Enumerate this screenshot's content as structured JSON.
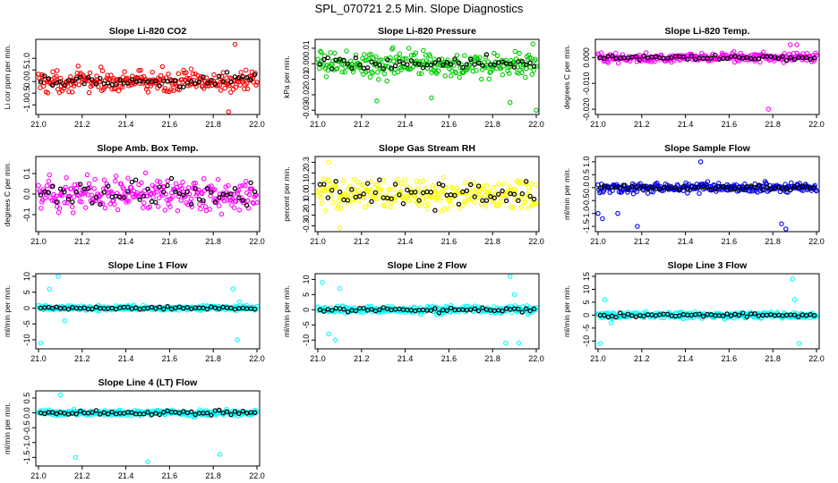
{
  "figure_title": "SPL_070721  2.5 Min. Slope Diagnostics",
  "chart_data": [
    {
      "type": "scatter",
      "title": "Slope Li-820 CO2",
      "ylabel": "Li cor ppm per min.",
      "color": "#ff0000",
      "xlim": [
        21.0,
        22.0
      ],
      "ylim": [
        -1.3,
        1.7
      ],
      "xticks": [
        "21.0",
        "21.2",
        "21.4",
        "21.6",
        "21.8",
        "22.0"
      ],
      "yticks": [
        {
          "v": 1.0,
          "t": "1.0"
        },
        {
          "v": 0.5,
          "t": "0.5"
        },
        {
          "v": 0.0,
          "t": "0.0"
        },
        {
          "v": -0.5,
          "t": "-0.5"
        },
        {
          "v": -1.0,
          "t": "-1.0"
        }
      ],
      "series": [
        {
          "name": "slope points",
          "spread": 0.32,
          "center": 0.0,
          "outliers": [
            [
              21.9,
              1.6
            ],
            [
              21.87,
              -1.3
            ]
          ]
        },
        {
          "name": "black points",
          "spread": 0.2,
          "center": 0.0
        }
      ]
    },
    {
      "type": "scatter",
      "title": "Slope Li-820 Pressure",
      "ylabel": "kPa per min.",
      "color": "#00cc00",
      "xlim": [
        21.0,
        22.0
      ],
      "ylim": [
        -0.031,
        0.014
      ],
      "xticks": [
        "21.0",
        "21.2",
        "21.4",
        "21.6",
        "21.8",
        "22.0"
      ],
      "yticks": [
        {
          "v": 0.01,
          "t": "0.01"
        },
        {
          "v": 0.0,
          "t": "0.00"
        },
        {
          "v": -0.01,
          "t": "-0.01"
        },
        {
          "v": -0.02,
          "t": "-0.02"
        },
        {
          "v": -0.03,
          "t": "-0.03"
        }
      ],
      "series": [
        {
          "name": "slope points",
          "spread": 0.006,
          "center": 0.0,
          "outliers": [
            [
              22.0,
              -0.03
            ],
            [
              21.27,
              -0.024
            ],
            [
              21.88,
              -0.025
            ],
            [
              21.52,
              -0.022
            ]
          ]
        },
        {
          "name": "black points",
          "spread": 0.003,
          "center": 0.0
        }
      ]
    },
    {
      "type": "scatter",
      "title": "Slope Li-820 Temp.",
      "ylabel": "degrees C per min.",
      "color": "#ff00ff",
      "xlim": [
        21.0,
        22.0
      ],
      "ylim": [
        -0.021,
        0.006
      ],
      "xticks": [
        "21.0",
        "21.2",
        "21.4",
        "21.6",
        "21.8",
        "22.0"
      ],
      "yticks": [
        {
          "v": 0.0,
          "t": "0.000"
        },
        {
          "v": -0.01,
          "t": "-0.010"
        },
        {
          "v": -0.02,
          "t": "-0.020"
        }
      ],
      "series": [
        {
          "name": "slope points",
          "spread": 0.0012,
          "center": 0.0,
          "outliers": [
            [
              21.78,
              -0.02
            ],
            [
              21.88,
              0.005
            ],
            [
              21.91,
              0.005
            ]
          ]
        },
        {
          "name": "black points",
          "spread": 0.0006,
          "center": 0.0
        }
      ]
    },
    {
      "type": "scatter",
      "title": "Slope Amb. Box Temp.",
      "ylabel": "degrees C per min.",
      "color": "#ff00ff",
      "xlim": [
        21.0,
        22.0
      ],
      "ylim": [
        -0.17,
        0.17
      ],
      "xticks": [
        "21.0",
        "21.2",
        "21.4",
        "21.6",
        "21.8",
        "22.0"
      ],
      "yticks": [
        {
          "v": 0.1,
          "t": "0.1"
        },
        {
          "v": 0.0,
          "t": "0.0"
        },
        {
          "v": -0.1,
          "t": "-0.1"
        }
      ],
      "series": [
        {
          "name": "slope points",
          "spread": 0.06,
          "center": 0.0,
          "outliers": []
        },
        {
          "name": "black points",
          "spread": 0.05,
          "center": 0.0
        }
      ]
    },
    {
      "type": "scatter",
      "title": "Slope Gas Stream RH",
      "ylabel": "percent per min.",
      "color": "#ffff00",
      "xlim": [
        21.0,
        22.0
      ],
      "ylim": [
        -0.33,
        0.33
      ],
      "xticks": [
        "21.0",
        "21.2",
        "21.4",
        "21.6",
        "21.8",
        "22.0"
      ],
      "yticks": [
        {
          "v": 0.3,
          "t": "0.3"
        },
        {
          "v": 0.2,
          "t": "0.2"
        },
        {
          "v": 0.1,
          "t": "0.1"
        },
        {
          "v": 0.0,
          "t": "0.0"
        },
        {
          "v": -0.1,
          "t": "-0.1"
        },
        {
          "v": -0.2,
          "t": "-0.2"
        },
        {
          "v": -0.3,
          "t": "-0.3"
        }
      ],
      "series": [
        {
          "name": "slope points",
          "spread": 0.1,
          "center": 0.0,
          "outliers": [
            [
              21.05,
              0.3
            ],
            [
              21.1,
              -0.32
            ]
          ]
        },
        {
          "name": "black points",
          "spread": 0.08,
          "center": 0.0
        }
      ]
    },
    {
      "type": "scatter",
      "title": "Slope Sample Flow",
      "ylabel": "ml/min per min.",
      "color": "#0000ee",
      "xlim": [
        21.0,
        22.0
      ],
      "ylim": [
        -1.6,
        1.1
      ],
      "xticks": [
        "21.0",
        "21.2",
        "21.4",
        "21.6",
        "21.8",
        "22.0"
      ],
      "yticks": [
        {
          "v": 1.0,
          "t": "1.0"
        },
        {
          "v": 0.5,
          "t": "0.5"
        },
        {
          "v": 0.0,
          "t": "0.0"
        },
        {
          "v": -0.5,
          "t": "-0.5"
        },
        {
          "v": -1.0,
          "t": "-1.0"
        },
        {
          "v": -1.5,
          "t": "-1.5"
        }
      ],
      "series": [
        {
          "name": "slope points",
          "spread": 0.12,
          "center": 0.0,
          "outliers": [
            [
              21.0,
              -1.0
            ],
            [
              21.02,
              -1.2
            ],
            [
              21.09,
              -1.0
            ],
            [
              21.18,
              -1.5
            ],
            [
              21.47,
              1.0
            ],
            [
              21.84,
              -1.4
            ],
            [
              21.86,
              -1.6
            ]
          ]
        },
        {
          "name": "black points",
          "spread": 0.08,
          "center": 0.0
        }
      ]
    },
    {
      "type": "scatter",
      "title": "Slope Line 1 Flow",
      "ylabel": "ml/min per min.",
      "color": "#00ffff",
      "xlim": [
        21.0,
        22.0
      ],
      "ylim": [
        -12,
        10
      ],
      "xticks": [
        "21.0",
        "21.2",
        "21.4",
        "21.6",
        "21.8",
        "22.0"
      ],
      "yticks": [
        {
          "v": 10,
          "t": "10"
        },
        {
          "v": 5,
          "t": "5"
        },
        {
          "v": 0,
          "t": "0"
        },
        {
          "v": -5,
          "t": "-5"
        },
        {
          "v": -10,
          "t": "-10"
        }
      ],
      "series": [
        {
          "name": "slope points",
          "spread": 0.5,
          "center": 0.0,
          "outliers": [
            [
              21.01,
              -11
            ],
            [
              21.05,
              6
            ],
            [
              21.09,
              10
            ],
            [
              21.12,
              -4
            ],
            [
              21.89,
              6
            ],
            [
              21.91,
              -10
            ],
            [
              21.92,
              2
            ]
          ]
        },
        {
          "name": "black points",
          "spread": 0.3,
          "center": 0.0
        }
      ]
    },
    {
      "type": "scatter",
      "title": "Slope Line 2 Flow",
      "ylabel": "ml/min per min.",
      "color": "#00ffff",
      "xlim": [
        21.0,
        22.0
      ],
      "ylim": [
        -12,
        11
      ],
      "xticks": [
        "21.0",
        "21.2",
        "21.4",
        "21.6",
        "21.8",
        "22.0"
      ],
      "yticks": [
        {
          "v": 10,
          "t": "10"
        },
        {
          "v": 5,
          "t": "5"
        },
        {
          "v": 0,
          "t": "0"
        },
        {
          "v": -5,
          "t": "-5"
        },
        {
          "v": -10,
          "t": "-10"
        }
      ],
      "series": [
        {
          "name": "slope points",
          "spread": 0.8,
          "center": 0.0,
          "outliers": [
            [
              21.02,
              9
            ],
            [
              21.05,
              -8
            ],
            [
              21.08,
              -10
            ],
            [
              21.1,
              7
            ],
            [
              21.86,
              -11
            ],
            [
              21.88,
              11
            ],
            [
              21.9,
              5
            ],
            [
              21.92,
              -11
            ]
          ]
        },
        {
          "name": "black points",
          "spread": 0.5,
          "center": 0.0
        }
      ]
    },
    {
      "type": "scatter",
      "title": "Slope Line 3 Flow",
      "ylabel": "ml/min per min.",
      "color": "#00ffff",
      "xlim": [
        21.0,
        22.0
      ],
      "ylim": [
        -12,
        15
      ],
      "xticks": [
        "21.0",
        "21.2",
        "21.4",
        "21.6",
        "21.8",
        "22.0"
      ],
      "yticks": [
        {
          "v": 15,
          "t": "15"
        },
        {
          "v": 10,
          "t": "10"
        },
        {
          "v": 5,
          "t": "5"
        },
        {
          "v": 0,
          "t": "0"
        },
        {
          "v": -5,
          "t": "-5"
        },
        {
          "v": -10,
          "t": "-10"
        }
      ],
      "series": [
        {
          "name": "slope points",
          "spread": 0.8,
          "center": 0.0,
          "outliers": [
            [
              21.01,
              -11
            ],
            [
              21.03,
              6
            ],
            [
              21.06,
              -3
            ],
            [
              21.89,
              14
            ],
            [
              21.9,
              6
            ],
            [
              21.92,
              -11
            ]
          ]
        },
        {
          "name": "black points",
          "spread": 0.5,
          "center": 0.0
        }
      ]
    },
    {
      "type": "scatter",
      "title": "Slope Line 4 (LT) Flow",
      "ylabel": "ml/min per min.",
      "color": "#00ffff",
      "xlim": [
        21.0,
        22.0
      ],
      "ylim": [
        -1.7,
        0.65
      ],
      "xticks": [
        "21.0",
        "21.2",
        "21.4",
        "21.6",
        "21.8",
        "22.0"
      ],
      "yticks": [
        {
          "v": 0.5,
          "t": "0.5"
        },
        {
          "v": 0.0,
          "t": "0.0"
        },
        {
          "v": -0.5,
          "t": "-0.5"
        },
        {
          "v": -1.0,
          "t": "-1.0"
        },
        {
          "v": -1.5,
          "t": "-1.5"
        }
      ],
      "series": [
        {
          "name": "slope points",
          "spread": 0.07,
          "center": 0.0,
          "outliers": [
            [
              21.1,
              0.6
            ],
            [
              21.17,
              -1.5
            ],
            [
              21.5,
              -1.65
            ],
            [
              21.83,
              -1.4
            ]
          ]
        },
        {
          "name": "black points",
          "spread": 0.06,
          "center": 0.0
        }
      ]
    }
  ]
}
